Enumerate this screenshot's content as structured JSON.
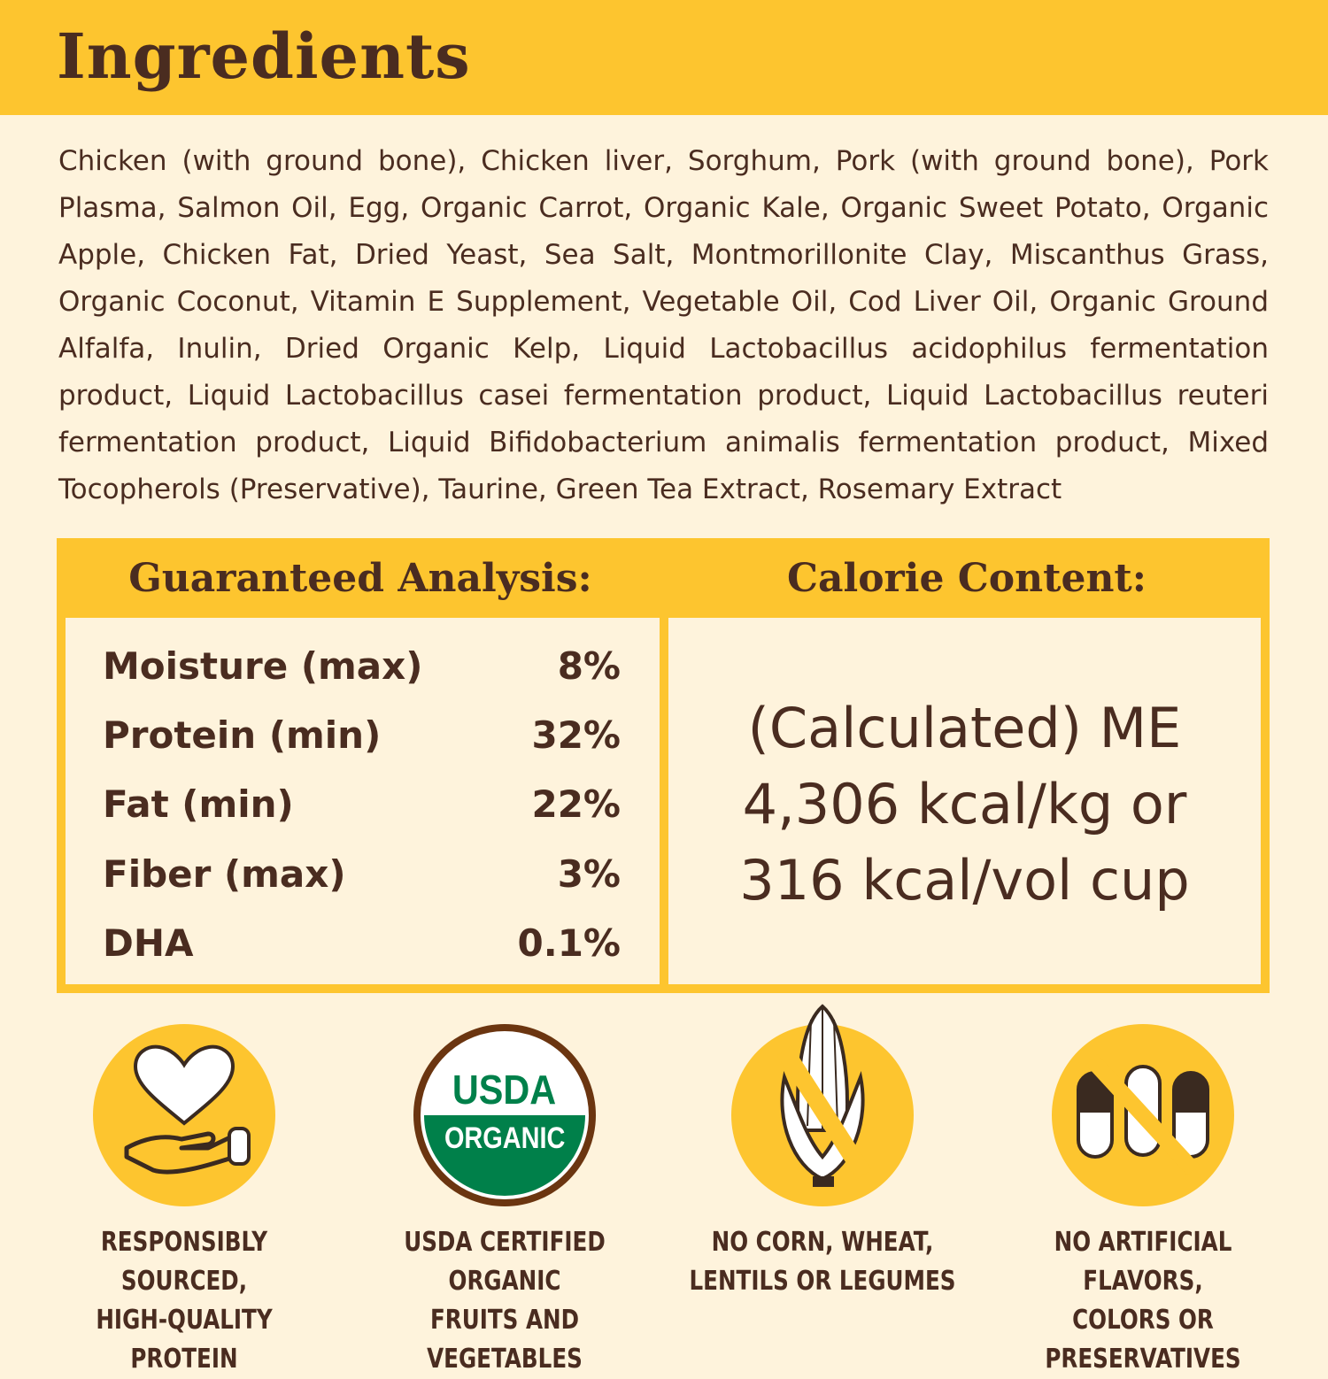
{
  "header": {
    "title": "Ingredients"
  },
  "ingredients": "Chicken (with ground bone), Chicken liver, Sorghum, Pork (with ground bone), Pork Plasma, Salmon Oil, Egg, Organic Carrot, Organic Kale, Organic Sweet Potato, Organic Apple, Chicken Fat, Dried Yeast, Sea Salt, Montmorillonite Clay, Miscanthus Grass, Organic Coconut, Vitamin E Supplement, Vegetable Oil, Cod Liver Oil, Organic Ground Alfalfa, Inulin, Dried Organic Kelp, Liquid Lactobacillus acidophilus fermentation product, Liquid Lactobacillus casei fermentation product, Liquid Lactobacillus reuteri fermentation product, Liquid Bifidobacterium animalis fermentation product, Mixed Tocopherols (Preservative), Taurine, Green Tea Extract, Rosemary Extract",
  "analysis": {
    "title": "Guaranteed Analysis:",
    "rows": [
      {
        "label": "Moisture (max)",
        "value": "8%"
      },
      {
        "label": "Protein (min)",
        "value": "32%"
      },
      {
        "label": "Fat (min)",
        "value": "22%"
      },
      {
        "label": "Fiber (max)",
        "value": "3%"
      },
      {
        "label": "DHA",
        "value": "0.1%"
      }
    ]
  },
  "calorie": {
    "title": "Calorie Content:",
    "lines": [
      "(Calculated) ME",
      "4,306 kcal/kg or",
      "316 kcal/vol cup"
    ]
  },
  "badges": [
    {
      "icon": "heart-hand-icon",
      "lines": [
        "RESPONSIBLY SOURCED,",
        "HIGH-QUALITY PROTEIN"
      ]
    },
    {
      "icon": "usda-organic-seal",
      "seal_top": "USDA",
      "seal_bottom": "ORGANIC",
      "lines": [
        "USDA CERTIFIED ORGANIC",
        "FRUITS AND VEGETABLES"
      ]
    },
    {
      "icon": "no-corn-icon",
      "lines": [
        "NO CORN, WHEAT,",
        "LENTILS OR LEGUMES"
      ]
    },
    {
      "icon": "no-capsules-icon",
      "lines": [
        "NO ARTIFICIAL FLAVORS,",
        "COLORS OR PRESERVATIVES"
      ]
    }
  ],
  "colors": {
    "yellow": "#fdc52f",
    "cream": "#fef3dc",
    "brown": "#4a2c20",
    "usda_green": "#00804a"
  }
}
